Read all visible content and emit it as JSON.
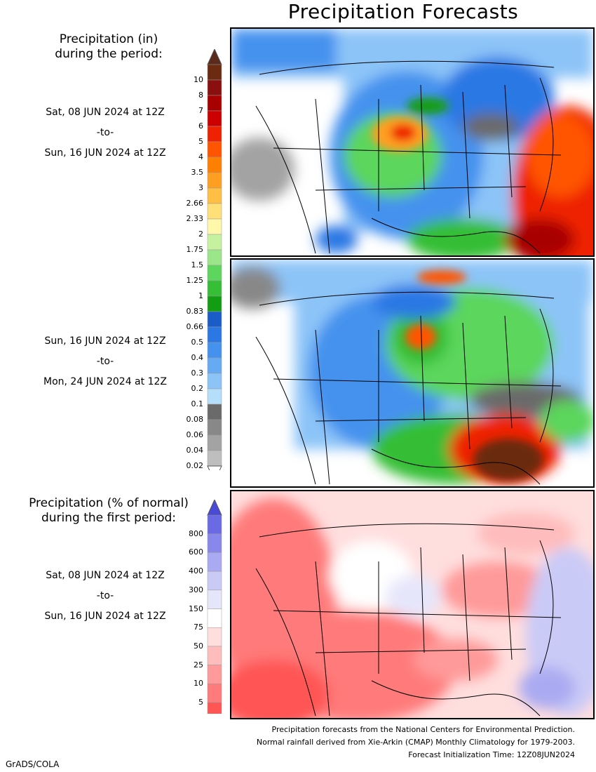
{
  "title": "Precipitation Forecasts",
  "legend1": {
    "title_line1": "Precipitation (in)",
    "title_line2": "during the period:",
    "labels": [
      "10",
      "8",
      "7",
      "6",
      "5",
      "4",
      "3.5",
      "3",
      "2.66",
      "2.33",
      "2",
      "1.75",
      "1.5",
      "1.25",
      "1",
      "0.83",
      "0.66",
      "0.5",
      "0.4",
      "0.3",
      "0.2",
      "0.1",
      "0.08",
      "0.06",
      "0.04",
      "0.02"
    ],
    "colors": [
      "#6b2b10",
      "#8a0f0f",
      "#a80000",
      "#cc0000",
      "#ee2200",
      "#ff5500",
      "#ff7f00",
      "#ff9f22",
      "#ffbf44",
      "#ffdf77",
      "#fff7aa",
      "#c6f2a0",
      "#9ce68a",
      "#5cd65c",
      "#36be36",
      "#129d12",
      "#1a5dc8",
      "#2b78e4",
      "#4592ee",
      "#66aaf4",
      "#8cc4f8",
      "#b4def9",
      "#6a6a6a",
      "#888888",
      "#a3a3a3",
      "#bebebe"
    ],
    "top_arrow": "#5a2a1a",
    "bottom_arrow": "#ffffff"
  },
  "legend2": {
    "title_line1": "Precipitation (% of normal)",
    "title_line2": "during the first period:",
    "labels": [
      "800",
      "600",
      "400",
      "300",
      "150",
      "75",
      "50",
      "25",
      "10",
      "5"
    ],
    "colors": [
      "#6a6ae4",
      "#8888ec",
      "#aaaaf2",
      "#cacaf7",
      "#e6e6fb",
      "#ffffff",
      "#ffdede",
      "#ffbcbc",
      "#ff9a9a",
      "#ff7a7a",
      "#ff5555"
    ],
    "top_arrow": "#4a4ad8",
    "bottom_arrow": "#ff3a3a"
  },
  "period1": {
    "start": "Sat, 08 JUN 2024 at 12Z",
    "sep": "-to-",
    "end": "Sun, 16 JUN 2024 at 12Z"
  },
  "period2": {
    "start": "Sun, 16 JUN 2024 at 12Z",
    "sep": "-to-",
    "end": "Mon, 24 JUN 2024 at 12Z"
  },
  "period3": {
    "start": "Sat, 08 JUN 2024 at 12Z",
    "sep": "-to-",
    "end": "Sun, 16 JUN 2024 at 12Z"
  },
  "footer": {
    "line1": "Precipitation forecasts from the National Centers for Environmental Prediction.",
    "line2": "Normal rainfall derived from Xie-Arkin (CMAP) Monthly Climatology for 1979-2003.",
    "line3": "Forecast Initialization Time: 12Z08JUN2024"
  },
  "credit": "GrADS/COLA"
}
